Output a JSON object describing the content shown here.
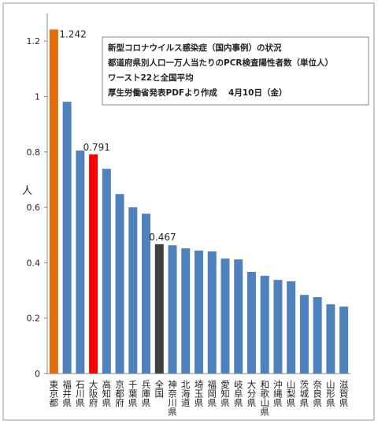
{
  "chart_data": {
    "type": "bar",
    "y_label": "人",
    "annotation_lines": [
      "新型コロナウイルス感染症（国内事例）の状況",
      "都道府県別人口一万人当たりのPCR検査陽性者数（単位人）",
      "ワースト22と全国平均",
      "厚生労働省発表PDFより作成　 4月10日（金）"
    ],
    "annotation_colors": [
      "#222222",
      "#222222",
      "#e00000",
      "#222222"
    ],
    "categories": [
      "東京都",
      "福井県",
      "石川県",
      "大阪府",
      "高知県",
      "京都府",
      "千葉県",
      "兵庫県",
      "全国",
      "神奈川県",
      "北海道",
      "埼玉県",
      "福岡県",
      "愛知県",
      "岐阜県",
      "大分県",
      "和歌山県",
      "沖縄県",
      "山梨県",
      "茨城県",
      "奈良県",
      "山形県",
      "滋賀県"
    ],
    "values": [
      1.242,
      0.981,
      0.805,
      0.791,
      0.739,
      0.648,
      0.6,
      0.577,
      0.467,
      0.463,
      0.452,
      0.444,
      0.441,
      0.415,
      0.412,
      0.367,
      0.353,
      0.338,
      0.333,
      0.284,
      0.276,
      0.25,
      0.242
    ],
    "value_labels": [
      "1.242",
      null,
      null,
      "0.791",
      null,
      null,
      null,
      null,
      "0.467",
      null,
      null,
      null,
      null,
      null,
      null,
      null,
      null,
      null,
      null,
      null,
      null,
      null,
      null
    ],
    "colors": [
      "#e36c0a",
      "#4f81bd",
      "#4f81bd",
      "#ff0000",
      "#4f81bd",
      "#4f81bd",
      "#4f81bd",
      "#4f81bd",
      "#404040",
      "#4f81bd",
      "#4f81bd",
      "#4f81bd",
      "#4f81bd",
      "#4f81bd",
      "#4f81bd",
      "#4f81bd",
      "#4f81bd",
      "#4f81bd",
      "#4f81bd",
      "#4f81bd",
      "#4f81bd",
      "#4f81bd",
      "#4f81bd"
    ],
    "ylim": [
      0,
      1.3
    ],
    "yticks": [
      0,
      0.2,
      0.4,
      0.6,
      0.8,
      1,
      1.2
    ]
  }
}
